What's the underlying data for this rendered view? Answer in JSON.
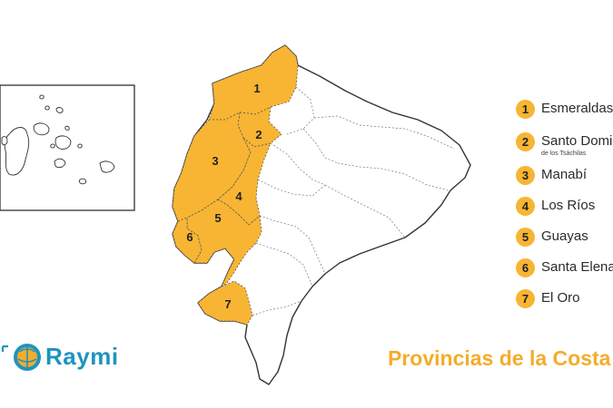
{
  "title": "Provincias de la Costa",
  "brand": {
    "name": "Raymi"
  },
  "colors": {
    "highlight": "#f8b533",
    "title": "#f5ac2a",
    "brand": "#1f93bf",
    "outline": "#333333"
  },
  "map_labels": [
    "1",
    "2",
    "3",
    "4",
    "5",
    "6",
    "7"
  ],
  "legend": [
    {
      "num": "1",
      "label": "Esmeraldas"
    },
    {
      "num": "2",
      "label": "Santo Domingo",
      "sublabel": "de los Tsáchilas"
    },
    {
      "num": "3",
      "label": "Manabí"
    },
    {
      "num": "4",
      "label": "Los Ríos"
    },
    {
      "num": "5",
      "label": "Guayas"
    },
    {
      "num": "6",
      "label": "Santa Elena"
    },
    {
      "num": "7",
      "label": "El Oro"
    }
  ]
}
